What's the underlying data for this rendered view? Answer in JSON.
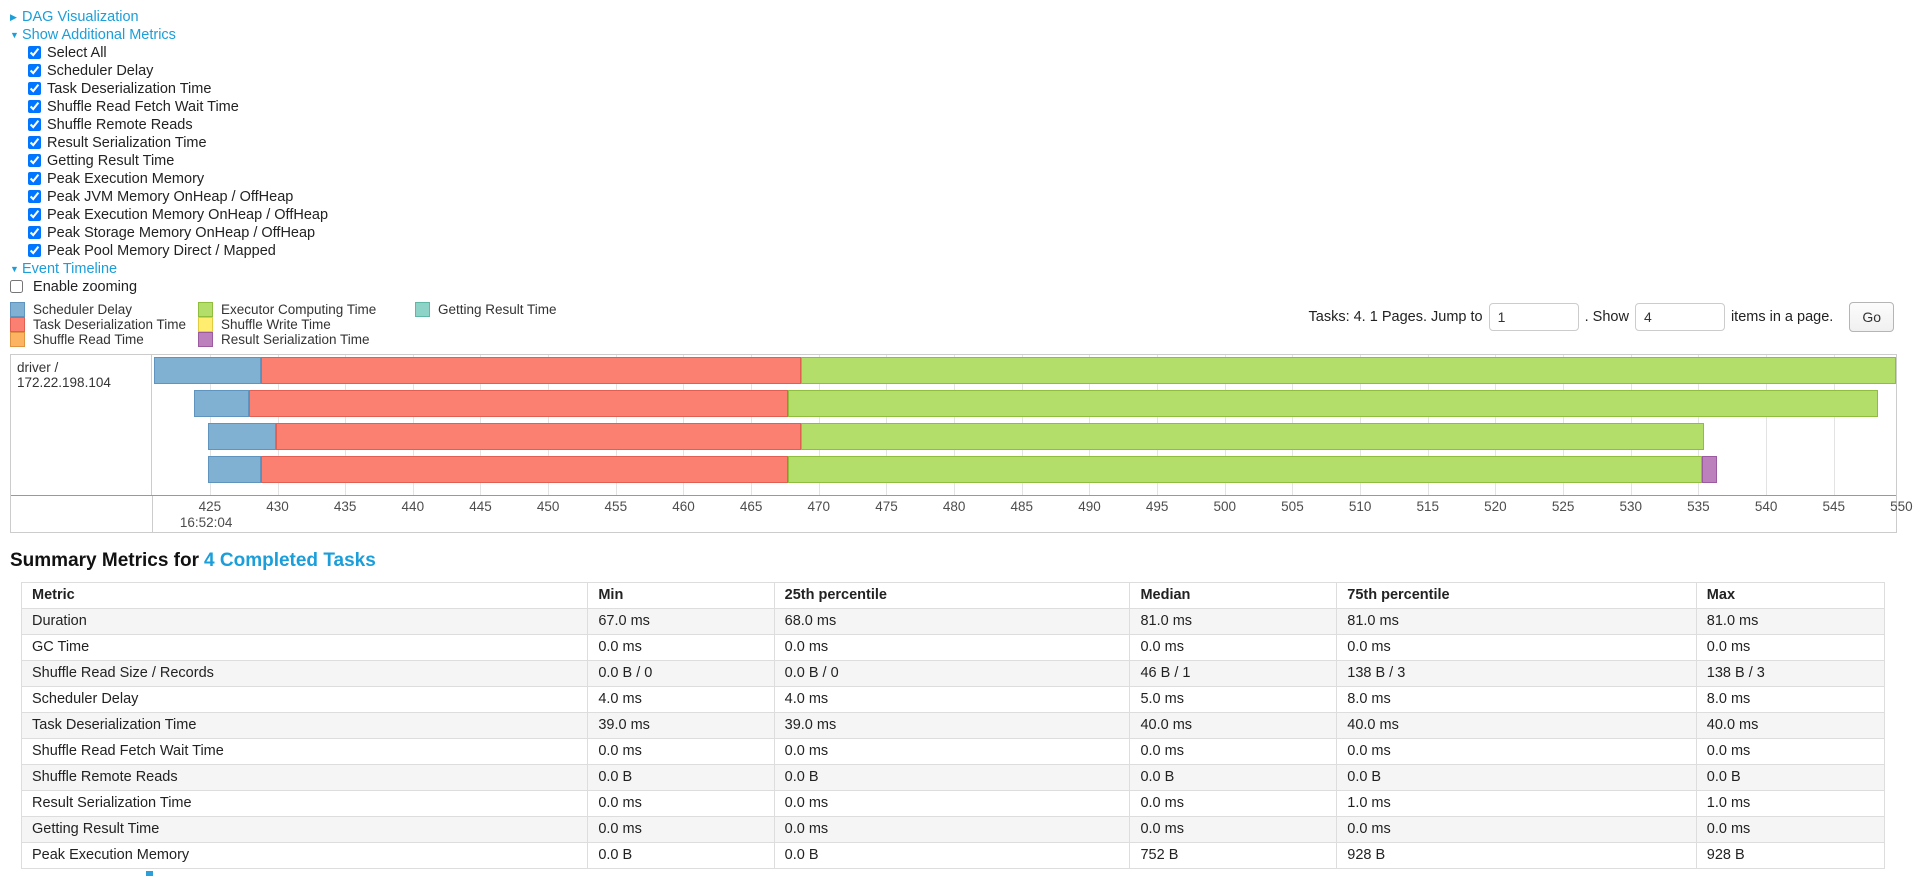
{
  "colors": {
    "accent": "#1b9ed9",
    "stripe": "#f5f5f5",
    "gridline": "#e3e3e3"
  },
  "icons": {
    "collapsed_arrow": "▶",
    "expanded_arrow": "▼"
  },
  "sections": {
    "dag": {
      "label": "DAG Visualization",
      "state": "collapsed"
    },
    "additional_metrics": {
      "label": "Show Additional Metrics",
      "state": "expanded"
    },
    "event_timeline": {
      "label": "Event Timeline",
      "state": "expanded"
    }
  },
  "metrics_panel": {
    "checkboxes": [
      {
        "label": "Select All",
        "checked": true
      },
      {
        "label": "Scheduler Delay",
        "checked": true
      },
      {
        "label": "Task Deserialization Time",
        "checked": true
      },
      {
        "label": "Shuffle Read Fetch Wait Time",
        "checked": true
      },
      {
        "label": "Shuffle Remote Reads",
        "checked": true
      },
      {
        "label": "Result Serialization Time",
        "checked": true
      },
      {
        "label": "Getting Result Time",
        "checked": true
      },
      {
        "label": "Peak Execution Memory",
        "checked": true
      },
      {
        "label": "Peak JVM Memory OnHeap / OffHeap",
        "checked": true
      },
      {
        "label": "Peak Execution Memory OnHeap / OffHeap",
        "checked": true
      },
      {
        "label": "Peak Storage Memory OnHeap / OffHeap",
        "checked": true
      },
      {
        "label": "Peak Pool Memory Direct / Mapped",
        "checked": true
      }
    ]
  },
  "enable_zooming": {
    "label": "Enable zooming",
    "checked": false
  },
  "pagination": {
    "summary_text": "Tasks: 4. 1 Pages. Jump to",
    "jump_value": "1",
    "mid_text": ". Show",
    "show_value": "4",
    "suffix_text": "items in a page.",
    "go_label": "Go"
  },
  "chart_data": {
    "type": "timeline",
    "title": "Event Timeline",
    "executor_label": "driver / 172.22.198.104",
    "time_axis": {
      "unit": "milliseconds within second shown by anchor label",
      "start": 420.8,
      "end": 549.6,
      "tick_interval": 5,
      "ticks": [
        425,
        430,
        435,
        440,
        445,
        450,
        455,
        460,
        465,
        470,
        475,
        480,
        485,
        490,
        495,
        500,
        505,
        510,
        515,
        520,
        525,
        530,
        535,
        540,
        545,
        550
      ],
      "anchor_label": "16:52:04",
      "anchor_tick": 425
    },
    "legend": [
      {
        "name": "Scheduler Delay",
        "fill": "#80B1D3",
        "stroke": "#5E94BD"
      },
      {
        "name": "Task Deserialization Time",
        "fill": "#FB8072",
        "stroke": "#E05F52"
      },
      {
        "name": "Shuffle Read Time",
        "fill": "#FDB462",
        "stroke": "#DE9440"
      },
      {
        "name": "Executor Computing Time",
        "fill": "#B3DE69",
        "stroke": "#8FBE3F"
      },
      {
        "name": "Shuffle Write Time",
        "fill": "#FFED6F",
        "stroke": "#E0CC3F"
      },
      {
        "name": "Result Serialization Time",
        "fill": "#BC80BD",
        "stroke": "#9C5AA0"
      },
      {
        "name": "Getting Result Time",
        "fill": "#8DD3C7",
        "stroke": "#5FB7A6"
      }
    ],
    "legend_columns": [
      [
        0,
        1,
        2
      ],
      [
        3,
        4,
        5
      ],
      [
        6
      ]
    ],
    "tasks": [
      {
        "segments": [
          {
            "metric": "Scheduler Delay",
            "start": 420.9,
            "end": 428.8
          },
          {
            "metric": "Task Deserialization Time",
            "start": 428.8,
            "end": 468.7
          },
          {
            "metric": "Executor Computing Time",
            "start": 468.7,
            "end": 549.6
          }
        ]
      },
      {
        "segments": [
          {
            "metric": "Scheduler Delay",
            "start": 423.8,
            "end": 427.9
          },
          {
            "metric": "Task Deserialization Time",
            "start": 427.9,
            "end": 467.7
          },
          {
            "metric": "Executor Computing Time",
            "start": 467.7,
            "end": 548.3
          }
        ]
      },
      {
        "segments": [
          {
            "metric": "Scheduler Delay",
            "start": 424.9,
            "end": 429.9
          },
          {
            "metric": "Task Deserialization Time",
            "start": 429.9,
            "end": 468.7
          },
          {
            "metric": "Executor Computing Time",
            "start": 468.7,
            "end": 535.4
          }
        ]
      },
      {
        "segments": [
          {
            "metric": "Scheduler Delay",
            "start": 424.9,
            "end": 428.8
          },
          {
            "metric": "Task Deserialization Time",
            "start": 428.8,
            "end": 467.7
          },
          {
            "metric": "Executor Computing Time",
            "start": 467.7,
            "end": 535.3
          },
          {
            "metric": "Result Serialization Time",
            "start": 535.3,
            "end": 536.4
          }
        ]
      }
    ]
  },
  "summary_section": {
    "title_prefix": "Summary Metrics for",
    "title_link": "4 Completed Tasks",
    "table": {
      "headers": [
        "Metric",
        "Min",
        "25th percentile",
        "Median",
        "75th percentile",
        "Max"
      ],
      "rows": [
        {
          "metric": "Duration",
          "values": [
            "67.0 ms",
            "68.0 ms",
            "81.0 ms",
            "81.0 ms",
            "81.0 ms"
          ]
        },
        {
          "metric": "GC Time",
          "values": [
            "0.0 ms",
            "0.0 ms",
            "0.0 ms",
            "0.0 ms",
            "0.0 ms"
          ]
        },
        {
          "metric": "Shuffle Read Size / Records",
          "values": [
            "0.0 B / 0",
            "0.0 B / 0",
            "46 B / 1",
            "138 B / 3",
            "138 B / 3"
          ]
        },
        {
          "metric": "Scheduler Delay",
          "values": [
            "4.0 ms",
            "4.0 ms",
            "5.0 ms",
            "8.0 ms",
            "8.0 ms"
          ]
        },
        {
          "metric": "Task Deserialization Time",
          "values": [
            "39.0 ms",
            "39.0 ms",
            "40.0 ms",
            "40.0 ms",
            "40.0 ms"
          ]
        },
        {
          "metric": "Shuffle Read Fetch Wait Time",
          "values": [
            "0.0 ms",
            "0.0 ms",
            "0.0 ms",
            "0.0 ms",
            "0.0 ms"
          ]
        },
        {
          "metric": "Shuffle Remote Reads",
          "values": [
            "0.0 B",
            "0.0 B",
            "0.0 B",
            "0.0 B",
            "0.0 B"
          ]
        },
        {
          "metric": "Result Serialization Time",
          "values": [
            "0.0 ms",
            "0.0 ms",
            "0.0 ms",
            "1.0 ms",
            "1.0 ms"
          ]
        },
        {
          "metric": "Getting Result Time",
          "values": [
            "0.0 ms",
            "0.0 ms",
            "0.0 ms",
            "0.0 ms",
            "0.0 ms"
          ]
        },
        {
          "metric": "Peak Execution Memory",
          "values": [
            "0.0 B",
            "0.0 B",
            "752 B",
            "928 B",
            "928 B"
          ]
        }
      ]
    }
  }
}
